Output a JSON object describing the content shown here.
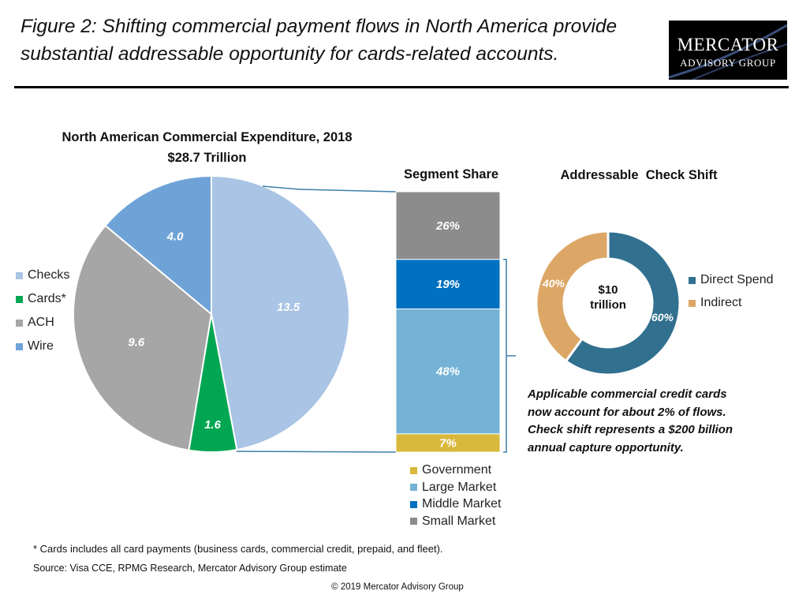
{
  "header": {
    "title": "Figure 2: Shifting commercial payment flows in North America provide substantial addressable opportunity for cards-related accounts.",
    "logo_line1": "MERCATOR",
    "logo_line2": "ADVISORY GROUP"
  },
  "chart_data": [
    {
      "type": "pie",
      "title": "North American Commercial Expenditure, 2018",
      "subtitle": "$28.7 Trillion",
      "legend_position": "left",
      "slices": [
        {
          "name": "Checks",
          "value": 13.5,
          "label": "13.5",
          "color": "#a9c4e4"
        },
        {
          "name": "Cards*",
          "value": 1.6,
          "label": "1.6",
          "color": "#00a651"
        },
        {
          "name": "ACH",
          "value": 9.6,
          "label": "9.6",
          "color": "#a6a6a6"
        },
        {
          "name": "Wire",
          "value": 4.0,
          "label": "4.0",
          "color": "#6fa3d8"
        }
      ]
    },
    {
      "type": "bar",
      "title": "Segment Share",
      "stacked": true,
      "legend_position": "bottom",
      "segments": [
        {
          "name": "Small Market",
          "value": 26,
          "label": "26%",
          "color": "#8c8c8c"
        },
        {
          "name": "Middle Market",
          "value": 19,
          "label": "19%",
          "color": "#0070c0"
        },
        {
          "name": "Large Market",
          "value": 48,
          "label": "48%",
          "color": "#74b3d6"
        },
        {
          "name": "Government",
          "value": 7,
          "label": "7%",
          "color": "#d9b83b"
        }
      ],
      "legend_order": [
        "Government",
        "Large Market",
        "Middle Market",
        "Small Market"
      ]
    },
    {
      "type": "pie",
      "subtype": "donut",
      "title": "Addressable  Check Shift",
      "center_label": [
        "$10",
        "trillion"
      ],
      "legend_position": "right",
      "slices": [
        {
          "name": "Direct Spend",
          "value": 60,
          "label": "60%",
          "color": "#31708f"
        },
        {
          "name": "Indirect",
          "value": 40,
          "label": "40%",
          "color": "#dca766"
        }
      ]
    }
  ],
  "callout": {
    "lines": [
      "Applicable commercial credit cards",
      "now account for about 2% of flows.",
      "Check shift represents a $200 billion",
      "annual capture opportunity."
    ]
  },
  "footer": {
    "footnote": "* Cards includes all card payments (business cards, commercial credit, prepaid, and fleet).",
    "source": "Source: Visa CCE, RPMG Research, Mercator Advisory Group estimate",
    "copyright": "© 2019 Mercator Advisory Group"
  }
}
